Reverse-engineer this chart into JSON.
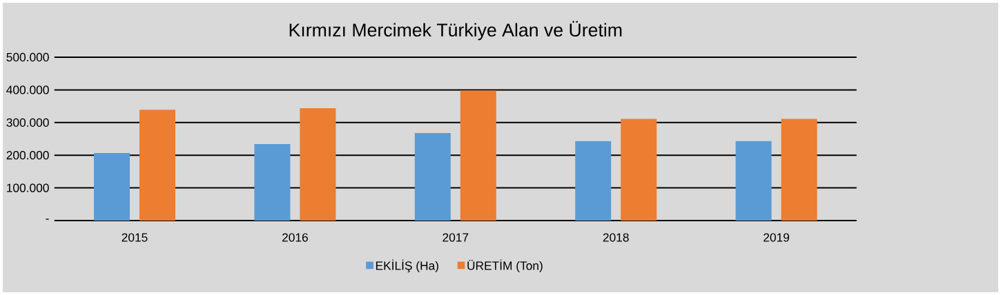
{
  "chart_data": {
    "type": "bar",
    "title": "Kırmızı Mercimek Türkiye Alan ve Üretim",
    "categories": [
      "2015",
      "2016",
      "2017",
      "2018",
      "2019"
    ],
    "series": [
      {
        "name": "EKİLİŞ (Ha)",
        "color": "#5b9bd5",
        "values": [
          207000,
          234000,
          268000,
          243000,
          243000
        ]
      },
      {
        "name": "ÜRETİM (Ton)",
        "color": "#ed7d31",
        "values": [
          339000,
          344000,
          398000,
          311000,
          311000
        ]
      }
    ],
    "ylim": [
      0,
      500000
    ],
    "yticks": [
      {
        "value": 0,
        "label": "-"
      },
      {
        "value": 100000,
        "label": "100.000"
      },
      {
        "value": 200000,
        "label": "200.000"
      },
      {
        "value": 300000,
        "label": "300.000"
      },
      {
        "value": 400000,
        "label": "400.000"
      },
      {
        "value": 500000,
        "label": "500.000"
      }
    ],
    "grid": "y",
    "legend": "bottom"
  }
}
